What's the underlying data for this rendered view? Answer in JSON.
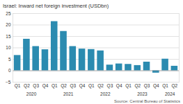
{
  "chart_data": {
    "type": "bar",
    "title": "Israel: Inward net foreign investment (USDbn)",
    "caption": "Source: Central Bureau of Statistics",
    "categories": [
      "Q1",
      "Q2",
      "Q3",
      "Q4",
      "Q1",
      "Q2",
      "Q3",
      "Q4",
      "Q1",
      "Q2",
      "Q3",
      "Q4",
      "Q1",
      "Q2",
      "Q3",
      "Q4",
      "Q1",
      "Q2"
    ],
    "years": [
      "2020",
      "2020",
      "2020",
      "2020",
      "2021",
      "2021",
      "2021",
      "2021",
      "2022",
      "2022",
      "2022",
      "2022",
      "2023",
      "2023",
      "2023",
      "2023",
      "2024",
      "2024"
    ],
    "values": [
      6.7,
      13.8,
      10.6,
      9.2,
      21.5,
      17.2,
      10.6,
      9.5,
      9.3,
      8.7,
      2.5,
      3.0,
      2.8,
      2.3,
      3.8,
      -1.0,
      5.1,
      2.0
    ],
    "color": "#2b8bb0",
    "ylim": [
      -5,
      25
    ],
    "yticks": [
      -5,
      0,
      5,
      10,
      15,
      20,
      25
    ],
    "grid": true
  }
}
